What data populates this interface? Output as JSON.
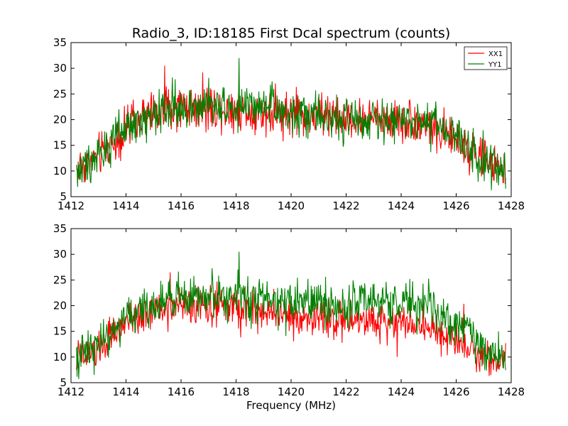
{
  "figure": {
    "title": "Radio_3, ID:18185 First Dcal spectrum (counts)"
  },
  "colors": {
    "xx": "#ff0000",
    "yy": "#008000",
    "background": "#ffffff",
    "axes": "#000000"
  },
  "chart_data": [
    {
      "type": "line",
      "panel": "top",
      "title": "Radio_3, ID:18185 First Dcal spectrum (counts)",
      "xlabel": "",
      "ylabel": "",
      "xlim": [
        1412,
        1428
      ],
      "ylim": [
        5,
        35
      ],
      "xticks": [
        "1412",
        "1414",
        "1416",
        "1418",
        "1420",
        "1422",
        "1424",
        "1426",
        "1428"
      ],
      "yticks": [
        "5",
        "10",
        "15",
        "20",
        "25",
        "30",
        "35"
      ],
      "grid": false,
      "legend": {
        "placement": "top-right",
        "entries": [
          "XX1",
          "YY1"
        ]
      },
      "x_range": [
        1412.2,
        1427.8
      ],
      "series": [
        {
          "name": "XX1",
          "color": "#ff0000",
          "envelope_x": [
            1412.2,
            1413,
            1414,
            1415,
            1416,
            1417,
            1418,
            1419,
            1420,
            1421,
            1422,
            1423,
            1424,
            1425,
            1426,
            1427,
            1427.8
          ],
          "envelope_y": [
            10.5,
            13,
            18,
            21.5,
            22.5,
            22.5,
            22,
            21.5,
            21,
            20.5,
            20,
            20,
            20,
            19,
            16,
            12,
            10.5
          ],
          "noise_amplitude": 3.5,
          "peak": [
            1415.4,
            30.5
          ]
        },
        {
          "name": "YY1",
          "color": "#008000",
          "envelope_x": [
            1412.2,
            1413,
            1414,
            1415,
            1416,
            1417,
            1418,
            1419,
            1420,
            1421,
            1422,
            1423,
            1424,
            1425,
            1426,
            1427,
            1427.8
          ],
          "envelope_y": [
            10,
            13,
            18,
            21.5,
            22.5,
            22.5,
            22.5,
            22,
            21,
            20.5,
            20,
            20,
            20,
            19.5,
            16.5,
            12,
            10
          ],
          "noise_amplitude": 3.5,
          "peak": [
            1418.1,
            32
          ]
        }
      ]
    },
    {
      "type": "line",
      "panel": "bottom",
      "title": "",
      "xlabel": "Frequency (MHz)",
      "ylabel": "",
      "xlim": [
        1412,
        1428
      ],
      "ylim": [
        5,
        35
      ],
      "xticks": [
        "1412",
        "1414",
        "1416",
        "1418",
        "1420",
        "1422",
        "1424",
        "1426",
        "1428"
      ],
      "yticks": [
        "5",
        "10",
        "15",
        "20",
        "25",
        "30",
        "35"
      ],
      "grid": false,
      "x_range": [
        1412.2,
        1427.8
      ],
      "series": [
        {
          "name": "XX1",
          "color": "#ff0000",
          "envelope_x": [
            1412.2,
            1413,
            1414,
            1415,
            1416,
            1417,
            1418,
            1419,
            1420,
            1421,
            1422,
            1423,
            1424,
            1425,
            1426,
            1427,
            1427.8
          ],
          "envelope_y": [
            9.5,
            11.5,
            16.5,
            19,
            20,
            20,
            19.5,
            19,
            18,
            17.5,
            17,
            17,
            17,
            16,
            13.5,
            10.5,
            9
          ],
          "noise_amplitude": 3.0,
          "peak": [
            1415.6,
            26.5
          ]
        },
        {
          "name": "YY1",
          "color": "#008000",
          "envelope_x": [
            1412.2,
            1413,
            1414,
            1415,
            1416,
            1417,
            1418,
            1419,
            1420,
            1421,
            1422,
            1423,
            1424,
            1425,
            1426,
            1427,
            1427.8
          ],
          "envelope_y": [
            10,
            12.5,
            17.5,
            20.5,
            21.5,
            22,
            22,
            21.5,
            21,
            20.5,
            20.5,
            20.5,
            20.5,
            20,
            16.5,
            12,
            10
          ],
          "noise_amplitude": 3.5,
          "peak": [
            1418.1,
            30.5
          ]
        }
      ]
    }
  ]
}
